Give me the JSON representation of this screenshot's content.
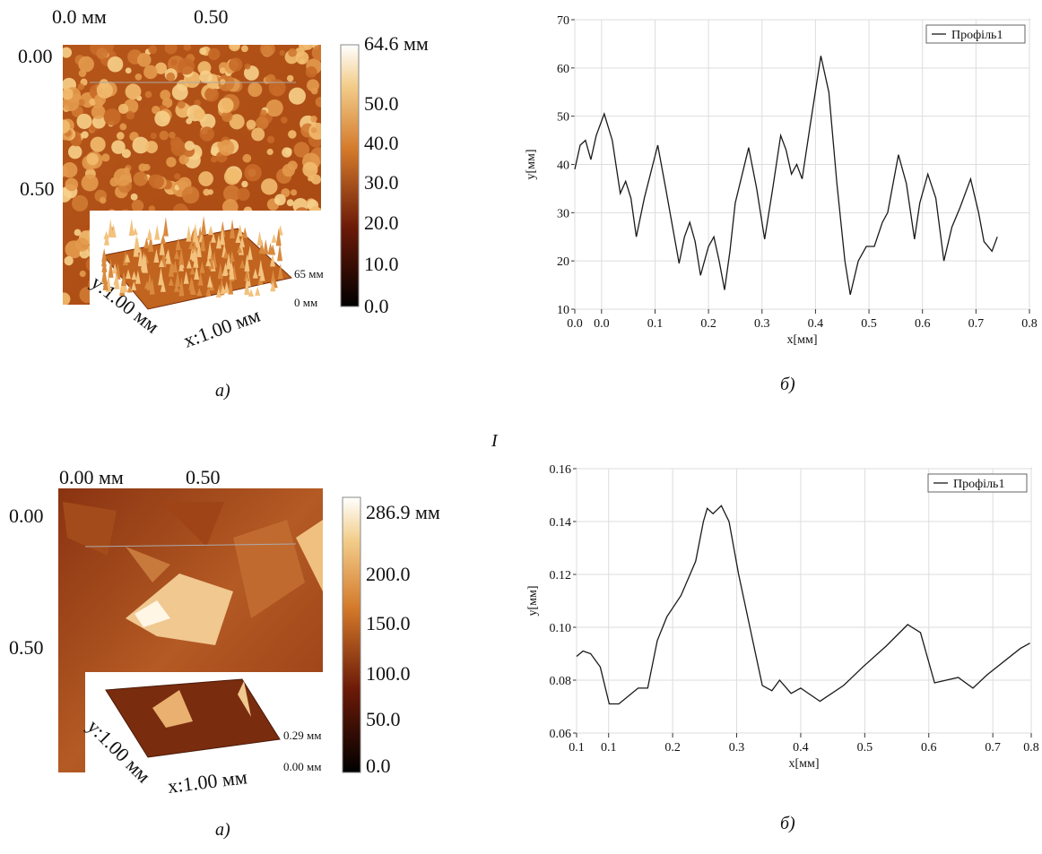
{
  "group_label": "I",
  "figures": [
    {
      "x_labels": [
        "0.0 мм",
        "0.50"
      ],
      "y_labels": [
        "0.00",
        "0.50"
      ],
      "colorbar": [
        "64.6 мм",
        "50.0",
        "40.0",
        "30.0",
        "20.0",
        "10.0",
        "0.0"
      ],
      "inset_z": [
        "65 мм",
        "0 мм"
      ],
      "inset_axes": [
        "y:1.00 мм",
        "x:1.00 мм"
      ],
      "caption": "а)"
    },
    {
      "x_labels": [
        "0.00 мм",
        "0.50"
      ],
      "y_labels": [
        "0.00",
        "0.50"
      ],
      "colorbar": [
        "286.9 мм",
        "200.0",
        "150.0",
        "100.0",
        "50.0",
        "0.0"
      ],
      "inset_z": [
        "0.29 мм",
        "0.00 мм"
      ],
      "inset_axes": [
        "y:1.00 мм",
        "x:1.00 мм"
      ],
      "caption": "а)"
    }
  ],
  "chart_data": [
    {
      "type": "line",
      "xlabel": "x[мм]",
      "ylabel": "y[мм]",
      "caption": "б)",
      "grid": true,
      "legend": "upper right",
      "xlim": [
        -0.05,
        0.8
      ],
      "ylim": [
        10,
        70
      ],
      "xticks": [
        {
          "value": -0.05,
          "label": "0.0"
        },
        {
          "value": 0,
          "label": "0.0"
        },
        0.1,
        0.2,
        0.3,
        0.4,
        0.5,
        0.6,
        0.7,
        0.8
      ],
      "yticks": [
        10,
        20,
        30,
        40,
        50,
        60,
        70
      ],
      "x": [
        -0.05,
        -0.04,
        -0.03,
        -0.02,
        -0.01,
        0.005,
        0.02,
        0.035,
        0.045,
        0.055,
        0.065,
        0.08,
        0.105,
        0.12,
        0.145,
        0.155,
        0.165,
        0.175,
        0.185,
        0.2,
        0.21,
        0.22,
        0.23,
        0.24,
        0.25,
        0.275,
        0.29,
        0.305,
        0.32,
        0.335,
        0.345,
        0.355,
        0.365,
        0.375,
        0.39,
        0.41,
        0.425,
        0.44,
        0.455,
        0.465,
        0.48,
        0.495,
        0.51,
        0.525,
        0.535,
        0.555,
        0.57,
        0.585,
        0.595,
        0.61,
        0.625,
        0.64,
        0.655,
        0.67,
        0.69,
        0.705,
        0.715,
        0.73,
        0.74
      ],
      "series": [
        {
          "name": "Профіль1",
          "color": "#1a1a1a",
          "values": [
            39,
            44,
            45,
            41,
            46,
            50.5,
            45,
            34,
            36.5,
            33,
            25,
            33,
            44,
            35,
            19.5,
            25,
            28,
            24,
            17,
            23,
            25,
            20,
            14,
            22,
            32,
            43.5,
            35,
            24.5,
            35,
            46,
            43,
            38,
            40,
            37,
            48,
            62.5,
            55,
            36,
            20,
            13,
            20,
            23,
            23,
            28,
            30,
            42,
            36,
            24.5,
            32,
            38,
            33,
            20,
            27,
            31,
            37,
            30,
            24,
            22,
            25
          ]
        }
      ]
    },
    {
      "type": "line",
      "xlabel": "x[мм]",
      "ylabel": "y[мм]",
      "caption": "б)",
      "grid": true,
      "legend": "upper right",
      "xlim": [
        0.05,
        0.76
      ],
      "ylim": [
        0.06,
        0.16
      ],
      "xticks": [
        {
          "value": 0.05,
          "label": "0.1"
        },
        0.1,
        0.2,
        0.3,
        0.4,
        0.5,
        0.6,
        0.7,
        {
          "value": 0.76,
          "label": "0.8"
        }
      ],
      "yticks": [
        0.06,
        0.08,
        {
          "value": 0.1,
          "label": "0.10"
        },
        0.12,
        0.14,
        0.16
      ],
      "x": [
        0.05,
        0.06,
        0.072,
        0.087,
        0.101,
        0.116,
        0.146,
        0.161,
        0.176,
        0.191,
        0.213,
        0.236,
        0.248,
        0.254,
        0.263,
        0.276,
        0.288,
        0.303,
        0.325,
        0.34,
        0.355,
        0.367,
        0.385,
        0.4,
        0.43,
        0.467,
        0.497,
        0.534,
        0.567,
        0.587,
        0.609,
        0.646,
        0.669,
        0.691,
        0.743,
        0.758
      ],
      "series": [
        {
          "name": "Профіль1",
          "color": "#1a1a1a",
          "values": [
            0.089,
            0.091,
            0.09,
            0.085,
            0.071,
            0.071,
            0.077,
            0.077,
            0.095,
            0.104,
            0.112,
            0.125,
            0.14,
            0.145,
            0.143,
            0.146,
            0.14,
            0.12,
            0.095,
            0.078,
            0.076,
            0.08,
            0.075,
            0.077,
            0.072,
            0.078,
            0.085,
            0.093,
            0.101,
            0.098,
            0.079,
            0.081,
            0.077,
            0.082,
            0.092,
            0.094
          ]
        }
      ]
    }
  ]
}
